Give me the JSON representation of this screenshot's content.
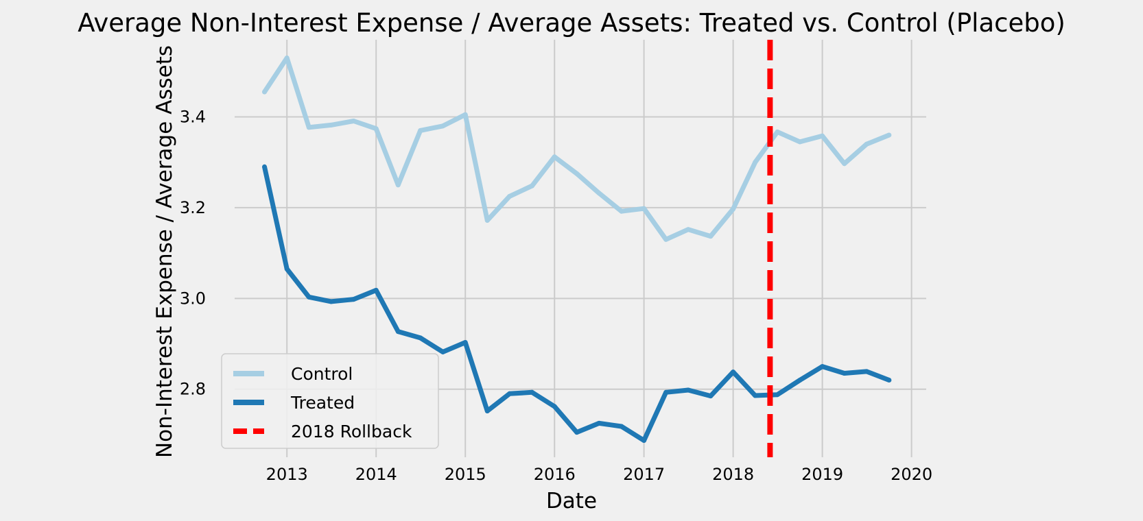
{
  "chart_data": {
    "type": "line",
    "title": "Average Non-Interest Expense / Average Assets: Treated vs. Control (Placebo)",
    "xlabel": "Date",
    "ylabel": "Non-Interest Expense / Average Assets",
    "xlim": [
      "2012-06-01",
      "2020-03-01"
    ],
    "ylim": [
      2.65,
      3.57
    ],
    "grid": true,
    "legend_position": "lower-left",
    "x_ticks": [
      "2013",
      "2014",
      "2015",
      "2016",
      "2017",
      "2018",
      "2019",
      "2020"
    ],
    "y_ticks": [
      "2.8",
      "3.0",
      "3.2",
      "3.4"
    ],
    "x": [
      "2012-10-01",
      "2013-01-01",
      "2013-04-01",
      "2013-07-01",
      "2013-10-01",
      "2014-01-01",
      "2014-04-01",
      "2014-07-01",
      "2014-10-01",
      "2015-01-01",
      "2015-04-01",
      "2015-07-01",
      "2015-10-01",
      "2016-01-01",
      "2016-04-01",
      "2016-07-01",
      "2016-10-01",
      "2017-01-01",
      "2017-04-01",
      "2017-07-01",
      "2017-10-01",
      "2018-01-01",
      "2018-04-01",
      "2018-07-01",
      "2018-10-01",
      "2019-01-01",
      "2019-04-01",
      "2019-07-01",
      "2019-10-01"
    ],
    "series": [
      {
        "name": "Control",
        "color": "#a6cee3",
        "values": [
          3.455,
          3.53,
          3.377,
          3.382,
          3.391,
          3.374,
          3.25,
          3.37,
          3.38,
          3.405,
          3.172,
          3.225,
          3.248,
          3.312,
          3.275,
          3.232,
          3.192,
          3.198,
          3.13,
          3.152,
          3.137,
          3.197,
          3.3,
          3.367,
          3.345,
          3.358,
          3.297,
          3.34,
          3.36
        ]
      },
      {
        "name": "Treated",
        "color": "#1f78b4",
        "values": [
          3.29,
          3.065,
          3.003,
          2.993,
          2.998,
          3.018,
          2.927,
          2.913,
          2.882,
          2.903,
          2.752,
          2.79,
          2.793,
          2.762,
          2.705,
          2.725,
          2.718,
          2.687,
          2.793,
          2.798,
          2.785,
          2.838,
          2.786,
          2.788,
          2.82,
          2.85,
          2.835,
          2.839,
          2.82
        ]
      }
    ],
    "annotations": [
      {
        "type": "vline",
        "label": "2018 Rollback",
        "x": "2018-06-01",
        "color": "#ff0000",
        "style": "dashed"
      }
    ]
  }
}
